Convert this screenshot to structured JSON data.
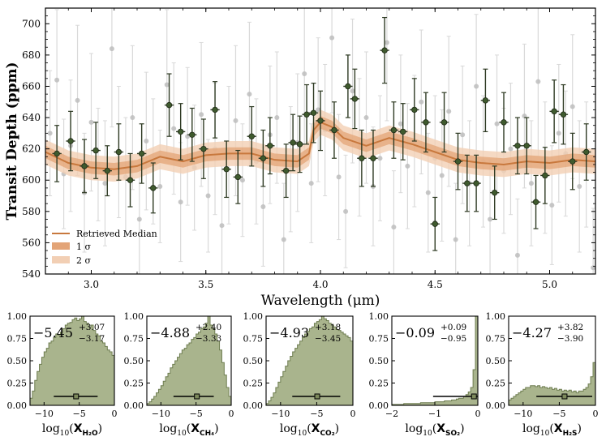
{
  "chart_data": [
    {
      "type": "scatter",
      "xlabel": "Wavelength (μm)",
      "ylabel": "Transit Depth (ppm)",
      "xlim": [
        2.8,
        5.2
      ],
      "ylim": [
        540,
        710
      ],
      "x_ticks": [
        3.0,
        3.5,
        4.0,
        4.5,
        5.0
      ],
      "y_ticks": [
        540,
        560,
        580,
        600,
        620,
        640,
        660,
        680,
        700
      ],
      "legend": {
        "position": "lower-left",
        "entries": [
          "Retrieved Median",
          "1 σ",
          "2 σ"
        ]
      },
      "model": {
        "x": [
          2.8,
          2.9,
          3.0,
          3.1,
          3.2,
          3.3,
          3.4,
          3.5,
          3.6,
          3.7,
          3.8,
          3.9,
          3.95,
          3.97,
          4.0,
          4.05,
          4.1,
          4.2,
          4.3,
          4.4,
          4.5,
          4.6,
          4.7,
          4.8,
          4.9,
          5.0,
          5.1,
          5.2
        ],
        "median": [
          618,
          611,
          608,
          607,
          609,
          615,
          612,
          616,
          617,
          617,
          613,
          612,
          617,
          632,
          637,
          634,
          627,
          622,
          627,
          623,
          618,
          613,
          611,
          610,
          612,
          611,
          613,
          612
        ],
        "sigma1": 4,
        "sigma2": 8
      },
      "raw_points": {
        "x": [
          2.82,
          2.85,
          2.88,
          2.91,
          2.94,
          2.97,
          3.0,
          3.03,
          3.06,
          3.09,
          3.12,
          3.15,
          3.18,
          3.21,
          3.24,
          3.27,
          3.3,
          3.33,
          3.36,
          3.39,
          3.42,
          3.45,
          3.48,
          3.51,
          3.54,
          3.57,
          3.6,
          3.63,
          3.66,
          3.69,
          3.72,
          3.75,
          3.78,
          3.81,
          3.84,
          3.87,
          3.9,
          3.93,
          3.96,
          3.99,
          4.02,
          4.05,
          4.08,
          4.11,
          4.14,
          4.17,
          4.2,
          4.23,
          4.26,
          4.29,
          4.32,
          4.35,
          4.38,
          4.41,
          4.44,
          4.47,
          4.5,
          4.53,
          4.56,
          4.59,
          4.62,
          4.65,
          4.68,
          4.71,
          4.74,
          4.77,
          4.8,
          4.83,
          4.86,
          4.89,
          4.92,
          4.95,
          4.98,
          5.01,
          5.04,
          5.07,
          5.1,
          5.13,
          5.16,
          5.19
        ],
        "y": [
          630,
          664,
          604,
          622,
          651,
          592,
          637,
          610,
          598,
          684,
          618,
          602,
          640,
          575,
          625,
          612,
          596,
          661,
          633,
          586,
          628,
          608,
          642,
          590,
          620,
          571,
          616,
          638,
          600,
          655,
          612,
          583,
          629,
          640,
          562,
          607,
          624,
          668,
          598,
          645,
          632,
          691,
          602,
          580,
          657,
          621,
          640,
          596,
          614,
          688,
          570,
          636,
          609,
          625,
          650,
          592,
          614,
          603,
          644,
          562,
          629,
          598,
          660,
          612,
          575,
          636,
          606,
          620,
          552,
          641,
          598,
          663,
          608,
          584,
          630,
          617,
          647,
          596,
          610,
          544
        ],
        "err": [
          40,
          45,
          35,
          42,
          48,
          38,
          44,
          36,
          40,
          50,
          42,
          38,
          46,
          35,
          44,
          40,
          36,
          48,
          42,
          38,
          44,
          40,
          46,
          36,
          42,
          38,
          44,
          48,
          36,
          46,
          40,
          38,
          44,
          42,
          36,
          40,
          44,
          50,
          38,
          46,
          42,
          48,
          40,
          36,
          46,
          44,
          42,
          38,
          40,
          50,
          36,
          44,
          40,
          42,
          46,
          38,
          40,
          42,
          48,
          36,
          44,
          40,
          46,
          42,
          38,
          44,
          40,
          42,
          36,
          46,
          40,
          48,
          42,
          38,
          44,
          40,
          46,
          42,
          40,
          38
        ]
      },
      "binned_points": {
        "x": [
          2.85,
          2.91,
          2.97,
          3.02,
          3.07,
          3.12,
          3.17,
          3.22,
          3.27,
          3.34,
          3.39,
          3.44,
          3.49,
          3.54,
          3.59,
          3.64,
          3.7,
          3.75,
          3.78,
          3.85,
          3.88,
          3.91,
          3.94,
          3.97,
          4.0,
          4.06,
          4.12,
          4.15,
          4.18,
          4.23,
          4.28,
          4.32,
          4.36,
          4.41,
          4.46,
          4.5,
          4.54,
          4.6,
          4.64,
          4.68,
          4.72,
          4.76,
          4.8,
          4.86,
          4.9,
          4.94,
          4.98,
          5.02,
          5.06,
          5.1,
          5.16
        ],
        "y": [
          617,
          625,
          609,
          619,
          606,
          618,
          600,
          617,
          595,
          648,
          631,
          629,
          620,
          645,
          607,
          602,
          628,
          614,
          622,
          606,
          624,
          623,
          642,
          643,
          638,
          632,
          660,
          652,
          614,
          614,
          683,
          632,
          631,
          645,
          637,
          572,
          637,
          612,
          598,
          598,
          651,
          592,
          637,
          622,
          622,
          586,
          603,
          644,
          642,
          612,
          618
        ],
        "err": [
          18,
          19,
          17,
          18,
          16,
          18,
          17,
          19,
          16,
          20,
          18,
          17,
          19,
          18,
          18,
          17,
          19,
          18,
          18,
          17,
          18,
          18,
          19,
          19,
          19,
          18,
          20,
          19,
          18,
          18,
          21,
          18,
          18,
          20,
          19,
          17,
          19,
          18,
          18,
          18,
          20,
          17,
          19,
          18,
          18,
          17,
          18,
          20,
          19,
          18,
          18
        ],
        "xerr": 0.02
      }
    },
    {
      "type": "histogram",
      "xlabel": "log10(X_H2O)",
      "species": "H2O",
      "sub": "H₂O",
      "xlim": [
        -12,
        0
      ],
      "x_ticks": [
        -10,
        -5,
        0
      ],
      "ylim": [
        0,
        1
      ],
      "y_ticks": [
        0.0,
        0.25,
        0.5,
        0.75,
        1.0
      ],
      "annotation": {
        "median": "−5.45",
        "plus": "+3.07",
        "minus": "−3.17"
      },
      "median_marker": -5.45,
      "interval": [
        -8.62,
        -2.38
      ],
      "heights": [
        0.08,
        0.16,
        0.28,
        0.38,
        0.46,
        0.54,
        0.6,
        0.64,
        0.7,
        0.72,
        0.76,
        0.8,
        0.79,
        0.82,
        0.86,
        0.9,
        0.92,
        0.93,
        0.96,
        0.98,
        0.95,
        0.97,
        1.0,
        0.94,
        0.92,
        0.88,
        0.9,
        0.84,
        0.8,
        0.78,
        0.72,
        0.7,
        0.66,
        0.62,
        0.6,
        0.56
      ]
    },
    {
      "type": "histogram",
      "xlabel": "log10(X_CH4)",
      "species": "CH4",
      "sub": "CH₄",
      "xlim": [
        -12,
        0
      ],
      "x_ticks": [
        -10,
        -5,
        0
      ],
      "ylim": [
        0,
        1
      ],
      "y_ticks": [
        0.0,
        0.25,
        0.5,
        0.75,
        1.0
      ],
      "annotation": {
        "median": "−4.88",
        "plus": "+2.40",
        "minus": "−3.33"
      },
      "median_marker": -4.88,
      "interval": [
        -8.21,
        -2.48
      ],
      "heights": [
        0.02,
        0.04,
        0.07,
        0.1,
        0.14,
        0.18,
        0.22,
        0.27,
        0.32,
        0.36,
        0.42,
        0.46,
        0.5,
        0.54,
        0.58,
        0.62,
        0.64,
        0.68,
        0.7,
        0.74,
        0.76,
        0.8,
        0.82,
        0.86,
        0.88,
        0.92,
        1.0,
        0.9,
        0.86,
        0.8,
        0.72,
        0.62,
        0.48,
        0.34,
        0.2,
        0.1
      ]
    },
    {
      "type": "histogram",
      "xlabel": "log10(X_CO2)",
      "species": "CO2",
      "sub": "CO₂",
      "xlim": [
        -12,
        0
      ],
      "x_ticks": [
        -10,
        -5,
        0
      ],
      "ylim": [
        0,
        1
      ],
      "y_ticks": [
        0.0,
        0.25,
        0.5,
        0.75,
        1.0
      ],
      "annotation": {
        "median": "−4.93",
        "plus": "+3.18",
        "minus": "−3.45"
      },
      "median_marker": -4.93,
      "interval": [
        -8.38,
        -1.75
      ],
      "heights": [
        0.02,
        0.05,
        0.09,
        0.14,
        0.2,
        0.26,
        0.32,
        0.38,
        0.44,
        0.5,
        0.55,
        0.6,
        0.64,
        0.68,
        0.72,
        0.76,
        0.8,
        0.83,
        0.86,
        0.88,
        0.92,
        0.94,
        0.96,
        1.0,
        0.97,
        0.95,
        0.92,
        0.9,
        0.88,
        0.85,
        0.84,
        0.82,
        0.8,
        0.78,
        0.76,
        0.72
      ]
    },
    {
      "type": "histogram",
      "xlabel": "log10(X_SO2)",
      "species": "SO2",
      "sub": "SO₂",
      "xlim": [
        -2,
        0
      ],
      "x_ticks": [
        -2,
        -1,
        0
      ],
      "ylim": [
        0,
        1
      ],
      "y_ticks": [
        0.0,
        0.25,
        0.5,
        0.75,
        1.0
      ],
      "annotation": {
        "median": "−0.09",
        "plus": "+0.09",
        "minus": "−0.95"
      },
      "median_marker": -0.09,
      "interval": [
        -1.04,
        0.0
      ],
      "heights": [
        0.01,
        0.01,
        0.01,
        0.01,
        0.01,
        0.02,
        0.02,
        0.02,
        0.02,
        0.02,
        0.02,
        0.02,
        0.03,
        0.03,
        0.03,
        0.03,
        0.03,
        0.03,
        0.04,
        0.04,
        0.04,
        0.04,
        0.05,
        0.05,
        0.05,
        0.06,
        0.06,
        0.07,
        0.08,
        0.08,
        0.1,
        0.12,
        0.15,
        0.2,
        0.4,
        1.0
      ]
    },
    {
      "type": "histogram",
      "xlabel": "log10(X_H2S)",
      "species": "H2S",
      "sub": "H₂S",
      "xlim": [
        -12,
        0
      ],
      "x_ticks": [
        -10,
        -5,
        0
      ],
      "ylim": [
        0,
        1
      ],
      "y_ticks": [
        0.0,
        0.25,
        0.5,
        0.75,
        1.0
      ],
      "annotation": {
        "median": "−4.27",
        "plus": "+3.82",
        "minus": "−3.90"
      },
      "median_marker": -4.27,
      "interval": [
        -8.17,
        -0.45
      ],
      "heights": [
        0.06,
        0.08,
        0.1,
        0.12,
        0.14,
        0.16,
        0.18,
        0.2,
        0.2,
        0.22,
        0.22,
        0.21,
        0.22,
        0.2,
        0.21,
        0.2,
        0.19,
        0.2,
        0.18,
        0.19,
        0.17,
        0.18,
        0.16,
        0.17,
        0.16,
        0.17,
        0.15,
        0.16,
        0.14,
        0.16,
        0.16,
        0.18,
        0.2,
        0.24,
        0.32,
        0.48
      ]
    }
  ]
}
